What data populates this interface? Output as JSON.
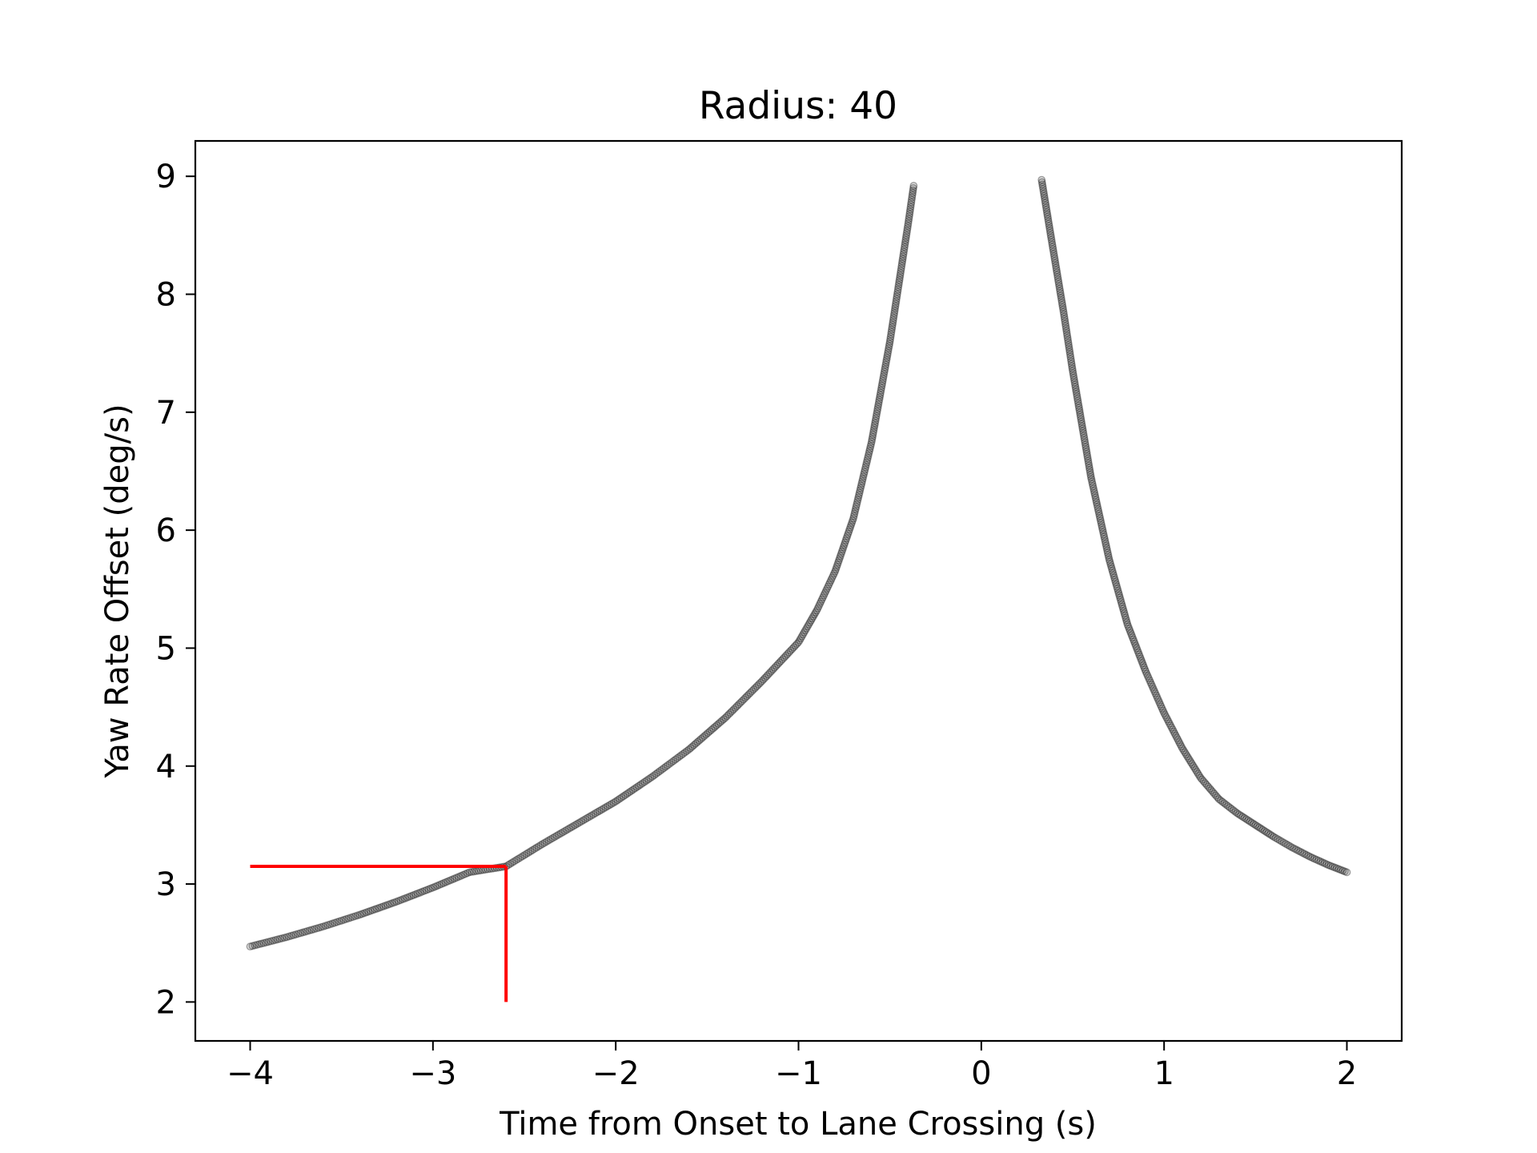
{
  "chart_data": {
    "type": "scatter",
    "title": "Radius: 40",
    "xlabel": "Time from Onset to Lane Crossing (s)",
    "ylabel": "Yaw Rate Offset (deg/s)",
    "xlim": [
      -4.3,
      2.3
    ],
    "ylim": [
      1.67,
      9.3
    ],
    "xticks": [
      -4,
      -3,
      -2,
      -1,
      0,
      1,
      2
    ],
    "xtick_labels": [
      "−4",
      "−3",
      "−2",
      "−1",
      "0",
      "1",
      "2"
    ],
    "yticks": [
      2,
      3,
      4,
      5,
      6,
      7,
      8,
      9
    ],
    "ytick_labels": [
      "2",
      "3",
      "4",
      "5",
      "6",
      "7",
      "8",
      "9"
    ],
    "grid": false,
    "marker_color": "#000000",
    "series": [
      {
        "points_left": [
          [
            -4.0,
            2.47
          ],
          [
            -3.8,
            2.55
          ],
          [
            -3.6,
            2.64
          ],
          [
            -3.4,
            2.74
          ],
          [
            -3.2,
            2.85
          ],
          [
            -3.0,
            2.97
          ],
          [
            -2.8,
            3.1
          ],
          [
            -2.6,
            3.15
          ],
          [
            -2.4,
            3.34
          ],
          [
            -2.2,
            3.52
          ],
          [
            -2.0,
            3.7
          ],
          [
            -1.8,
            3.91
          ],
          [
            -1.6,
            4.14
          ],
          [
            -1.4,
            4.41
          ],
          [
            -1.2,
            4.72
          ],
          [
            -1.0,
            5.05
          ],
          [
            -0.9,
            5.32
          ],
          [
            -0.8,
            5.65
          ],
          [
            -0.7,
            6.1
          ],
          [
            -0.6,
            6.75
          ],
          [
            -0.5,
            7.6
          ],
          [
            -0.45,
            8.1
          ],
          [
            -0.4,
            8.6
          ],
          [
            -0.37,
            8.92
          ]
        ],
        "points_right": [
          [
            0.33,
            8.97
          ],
          [
            0.38,
            8.5
          ],
          [
            0.45,
            7.85
          ],
          [
            0.5,
            7.35
          ],
          [
            0.55,
            6.9
          ],
          [
            0.6,
            6.45
          ],
          [
            0.7,
            5.75
          ],
          [
            0.8,
            5.2
          ],
          [
            0.9,
            4.8
          ],
          [
            1.0,
            4.45
          ],
          [
            1.1,
            4.15
          ],
          [
            1.2,
            3.9
          ],
          [
            1.3,
            3.72
          ],
          [
            1.4,
            3.6
          ],
          [
            1.5,
            3.5
          ],
          [
            1.6,
            3.4
          ],
          [
            1.7,
            3.31
          ],
          [
            1.8,
            3.23
          ],
          [
            1.9,
            3.16
          ],
          [
            2.0,
            3.1
          ]
        ]
      }
    ],
    "reference_lines": {
      "color": "#ff0000",
      "horizontal": {
        "y": 3.15,
        "x_from": -4.0,
        "x_to": -2.6
      },
      "vertical": {
        "x": -2.6,
        "y_from": 2.0,
        "y_to": 3.15
      }
    }
  }
}
